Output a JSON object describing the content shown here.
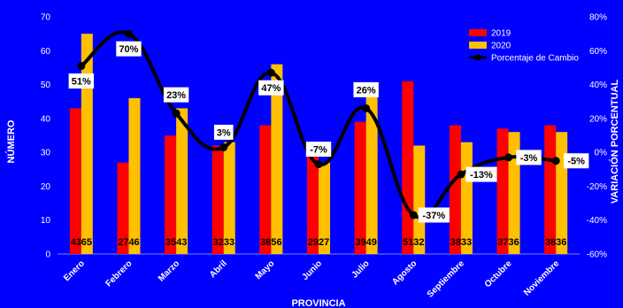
{
  "chart_data": {
    "type": "bar",
    "categories": [
      "Enero",
      "Febrero",
      "Marzo",
      "Abril",
      "Mayo",
      "Junio",
      "Julio",
      "Agosto",
      "Septiembre",
      "Octubre",
      "Noviembre"
    ],
    "series": [
      {
        "name": "2019",
        "values": [
          43,
          27,
          35,
          32,
          38,
          29,
          39,
          51,
          38,
          37,
          38
        ],
        "color": "#FF0000"
      },
      {
        "name": "2020",
        "values": [
          65,
          46,
          43,
          33,
          56,
          27,
          49,
          32,
          33,
          36,
          36
        ],
        "color": "#FFC000"
      }
    ],
    "line_series": {
      "name": "Porcentaje de Cambio",
      "values": [
        51,
        70,
        23,
        3,
        47,
        -7,
        26,
        -37,
        -13,
        -3,
        -5
      ],
      "labels": [
        "51%",
        "70%",
        "23%",
        "3%",
        "47%",
        "-7%",
        "26%",
        "-37%",
        "-13%",
        "-3%",
        "-5%"
      ],
      "color": "#000000",
      "axis": "right"
    },
    "bar_labels": [
      "4365",
      "2746",
      "3543",
      "3233",
      "3856",
      "2927",
      "3949",
      "5132",
      "3833",
      "3736",
      "3836"
    ],
    "xlabel": "PROVINCIA",
    "ylabel": "NÚMERO",
    "y2label": "VARIACIÓN PORCENTUAL",
    "ylim": [
      0,
      70
    ],
    "yticks": [
      "0",
      "10",
      "20",
      "30",
      "40",
      "50",
      "60",
      "70"
    ],
    "y2lim": [
      -60,
      80
    ],
    "y2ticks": [
      "-60%",
      "-40%",
      "-20%",
      "0%",
      "20%",
      "40%",
      "60%",
      "80%"
    ],
    "grid": false,
    "legend_position": "top-right",
    "background": "#0000FF"
  }
}
